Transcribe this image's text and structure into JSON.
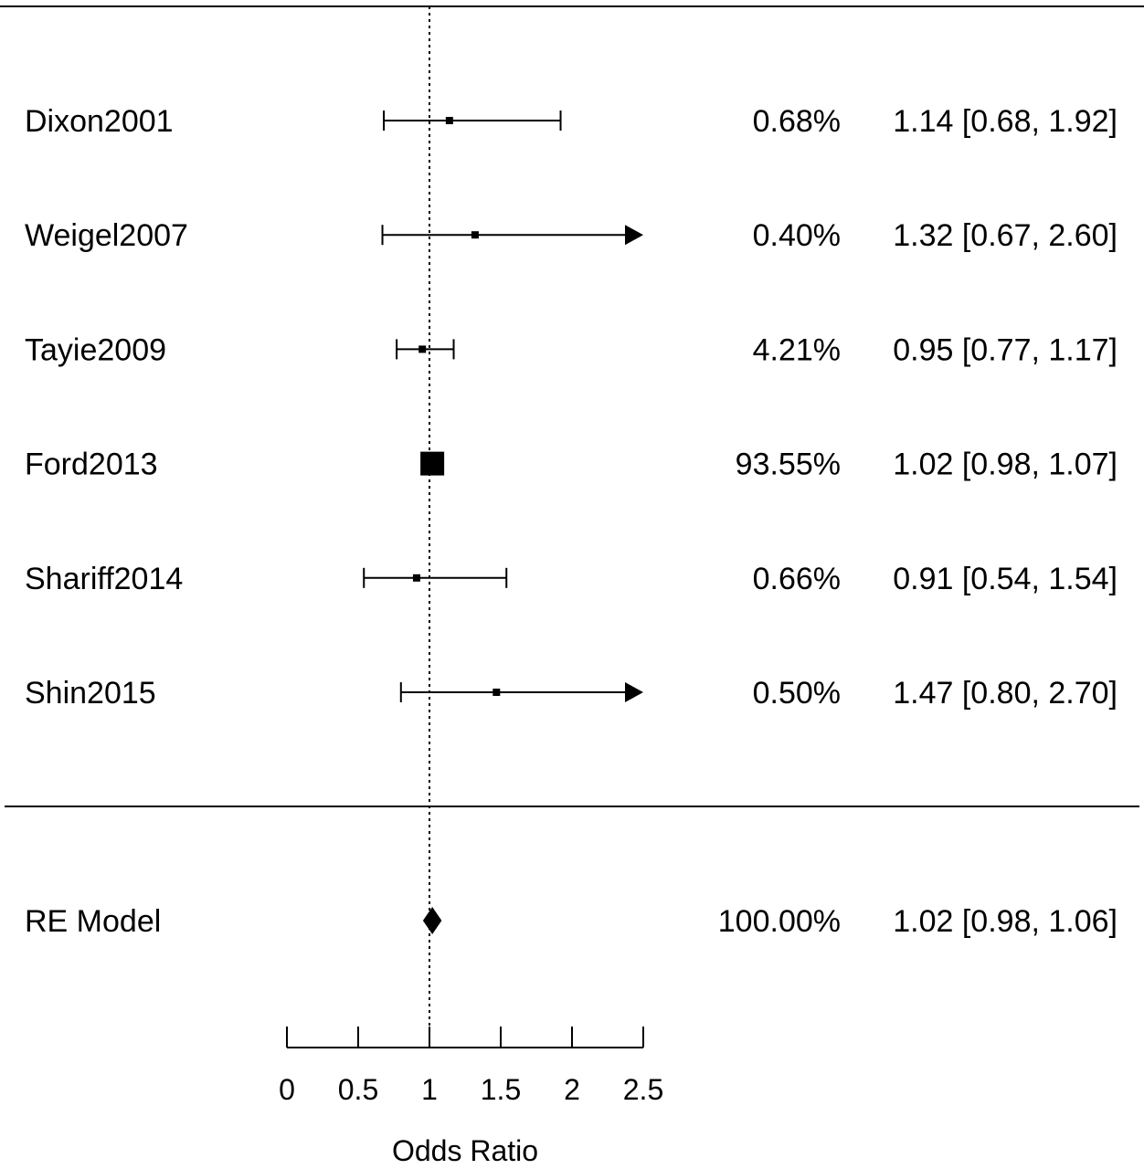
{
  "chart_data": {
    "type": "forest",
    "effect_measure": "Odds Ratio",
    "xlabel": "Odds Ratio",
    "xlim": [
      0,
      2.5
    ],
    "xticks": [
      0,
      0.5,
      1,
      1.5,
      2,
      2.5
    ],
    "xtick_labels": [
      "0",
      "0.5",
      "1",
      "1.5",
      "2",
      "2.5"
    ],
    "reference_line": 1,
    "studies": [
      {
        "name": "Dixon2001",
        "weight": "0.68%",
        "estimate": 1.14,
        "ci_low": 0.68,
        "ci_high": 1.92,
        "ci_text": "1.14 [0.68, 1.92]",
        "arrow_right": false
      },
      {
        "name": "Weigel2007",
        "weight": "0.40%",
        "estimate": 1.32,
        "ci_low": 0.67,
        "ci_high": 2.6,
        "ci_text": "1.32 [0.67, 2.60]",
        "arrow_right": true
      },
      {
        "name": "Tayie2009",
        "weight": "4.21%",
        "estimate": 0.95,
        "ci_low": 0.77,
        "ci_high": 1.17,
        "ci_text": "0.95 [0.77, 1.17]",
        "arrow_right": false
      },
      {
        "name": "Ford2013",
        "weight": "93.55%",
        "estimate": 1.02,
        "ci_low": 0.98,
        "ci_high": 1.07,
        "ci_text": "1.02 [0.98, 1.07]",
        "arrow_right": false
      },
      {
        "name": "Shariff2014",
        "weight": "0.66%",
        "estimate": 0.91,
        "ci_low": 0.54,
        "ci_high": 1.54,
        "ci_text": "0.91 [0.54, 1.54]",
        "arrow_right": false
      },
      {
        "name": "Shin2015",
        "weight": "0.50%",
        "estimate": 1.47,
        "ci_low": 0.8,
        "ci_high": 2.7,
        "ci_text": "1.47 [0.80, 2.70]",
        "arrow_right": true
      }
    ],
    "summary": {
      "name": "RE Model",
      "weight": "100.00%",
      "estimate": 1.02,
      "ci_low": 0.98,
      "ci_high": 1.06,
      "ci_text": "1.02 [0.98, 1.06]"
    }
  }
}
